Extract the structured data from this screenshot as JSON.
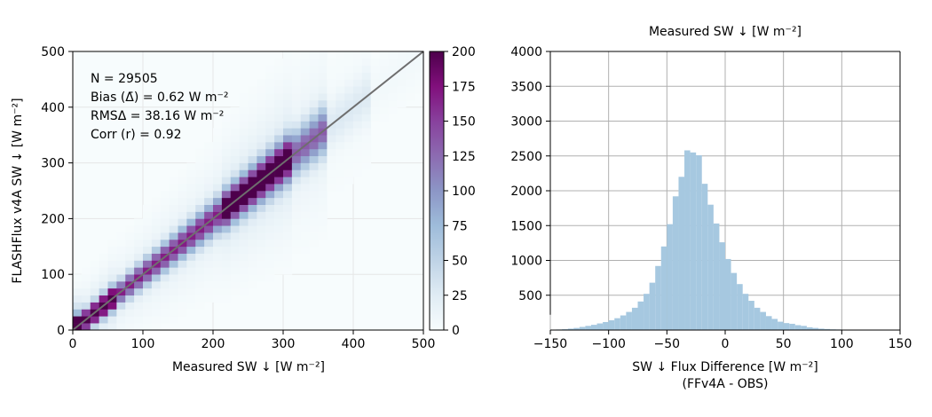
{
  "chart_data": [
    {
      "type": "heatmap",
      "xlabel": "Measured SW ↓  [W m⁻²]",
      "ylabel": "FLASHFlux v4A SW ↓  [W m⁻²]",
      "xlim": [
        0,
        500
      ],
      "ylim": [
        0,
        500
      ],
      "xticks": [
        "0",
        "100",
        "200",
        "300",
        "400",
        "500"
      ],
      "yticks": [
        "0",
        "100",
        "200",
        "300",
        "400",
        "500"
      ],
      "grid": true,
      "bin_width": 12.5,
      "one_to_one_line": true,
      "stats": [
        "N = 29505",
        "Bias (Δ̄) = 0.62 W m⁻²",
        "RMSΔ = 38.16 W m⁻²",
        "Corr (r) = 0.92"
      ],
      "colorbar": {
        "range": [
          0,
          200
        ],
        "ticks": [
          "0",
          "25",
          "50",
          "75",
          "100",
          "125",
          "150",
          "175",
          "200"
        ],
        "colors": [
          "#f7fcfd",
          "#e0ecf4",
          "#bfd3e6",
          "#9ebcda",
          "#8c96c6",
          "#8c6bb1",
          "#88419d",
          "#810f7c",
          "#4d004b"
        ]
      }
    },
    {
      "type": "bar",
      "title": "Measured SW ↓  [W m⁻²]",
      "xlabel": "SW ↓  Flux Difference [W m⁻²]",
      "xlabel2": "(FFv4A - OBS)",
      "xlim": [
        -150,
        150
      ],
      "ylim": [
        0,
        4000
      ],
      "xticks": [
        "−150",
        "−100",
        "−50",
        "0",
        "50",
        "100",
        "150"
      ],
      "yticks": [
        "500",
        "1000",
        "1500",
        "2000",
        "2500",
        "3000",
        "3500",
        "4000"
      ],
      "grid": true,
      "bar_color": "#a6c8e0",
      "bin_width": 5,
      "bin_edges_start": -150,
      "counts": [
        5,
        8,
        12,
        20,
        30,
        45,
        60,
        75,
        95,
        115,
        140,
        170,
        210,
        260,
        320,
        410,
        520,
        680,
        920,
        1200,
        1520,
        1920,
        2200,
        2580,
        2550,
        2510,
        2100,
        1800,
        1530,
        1260,
        1020,
        820,
        660,
        520,
        420,
        320,
        260,
        200,
        160,
        120,
        100,
        90,
        70,
        60,
        40,
        30,
        20,
        15,
        10,
        8,
        5,
        5,
        5,
        5,
        5,
        5,
        5,
        5,
        5,
        5
      ]
    }
  ]
}
